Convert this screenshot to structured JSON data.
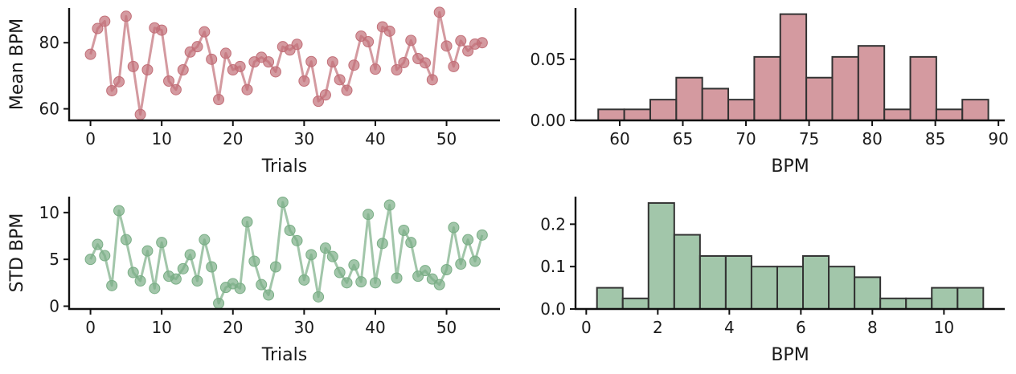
{
  "colors": {
    "red": "#c26f78",
    "green": "#7aae86",
    "edge": "#333333"
  },
  "chart_data": [
    {
      "type": "line",
      "id": "mean-line",
      "xlabel": "Trials",
      "ylabel": "Mean BPM",
      "xlim": [
        -3,
        57.5
      ],
      "ylim": [
        56.5,
        90.5
      ],
      "xticks": [
        0,
        10,
        20,
        30,
        40,
        50
      ],
      "xtick_labels": [
        "0",
        "10",
        "20",
        "30",
        "40",
        "50"
      ],
      "yticks": [
        60,
        80
      ],
      "ytick_labels": [
        "60",
        "80"
      ],
      "series": [
        {
          "name": "Mean BPM",
          "x": [
            0,
            1,
            2,
            3,
            4,
            5,
            6,
            7,
            8,
            9,
            10,
            11,
            12,
            13,
            14,
            15,
            16,
            17,
            18,
            19,
            20,
            21,
            22,
            23,
            24,
            25,
            26,
            27,
            28,
            29,
            30,
            31,
            32,
            33,
            34,
            35,
            36,
            37,
            38,
            39,
            40,
            41,
            42,
            43,
            44,
            45,
            46,
            47,
            48,
            49,
            50,
            51,
            52,
            53,
            54,
            55
          ],
          "values": [
            76.5,
            84.3,
            86.5,
            65.5,
            68.2,
            88,
            72.8,
            58.3,
            71.8,
            84.5,
            83.8,
            68.4,
            65.8,
            71.8,
            77.2,
            78.8,
            83.3,
            75,
            62.8,
            76.8,
            71.8,
            72.8,
            65.8,
            74.2,
            75.6,
            74.2,
            71.2,
            78.8,
            77.8,
            79.5,
            68.4,
            74.3,
            62.3,
            64.2,
            74.2,
            68.8,
            65.6,
            73.2,
            82,
            80.3,
            72,
            84.8,
            83.5,
            71.8,
            74,
            80.7,
            75.2,
            73.9,
            68.8,
            89.2,
            79,
            72.8,
            80.6,
            77.5,
            79.6,
            80
          ]
        }
      ]
    },
    {
      "type": "histogram",
      "id": "mean-hist",
      "xlabel": "BPM",
      "ylabel": "",
      "xlim": [
        56.5,
        90.5
      ],
      "ylim": [
        0,
        0.092
      ],
      "xticks": [
        60,
        65,
        70,
        75,
        80,
        85,
        90
      ],
      "xtick_labels": [
        "60",
        "65",
        "70",
        "75",
        "80",
        "85",
        "90"
      ],
      "yticks": [
        0,
        0.05
      ],
      "ytick_labels": [
        "0.00",
        "0.05"
      ],
      "bin_edges": [
        58.3,
        60.36,
        62.42,
        64.48,
        66.54,
        68.6,
        70.66,
        72.72,
        74.78,
        76.84,
        78.9,
        80.96,
        83.02,
        85.08,
        87.14,
        89.2
      ],
      "values": [
        0.009,
        0.009,
        0.017,
        0.035,
        0.026,
        0.017,
        0.052,
        0.087,
        0.035,
        0.052,
        0.061,
        0.009,
        0.052,
        0.009,
        0.017
      ]
    },
    {
      "type": "line",
      "id": "std-line",
      "xlabel": "Trials",
      "ylabel": "STD BPM",
      "xlim": [
        -3,
        57.5
      ],
      "ylim": [
        -0.3,
        11.7
      ],
      "xticks": [
        0,
        10,
        20,
        30,
        40,
        50
      ],
      "xtick_labels": [
        "0",
        "10",
        "20",
        "30",
        "40",
        "50"
      ],
      "yticks": [
        0,
        5,
        10
      ],
      "ytick_labels": [
        "0",
        "5",
        "10"
      ],
      "series": [
        {
          "name": "STD BPM",
          "x": [
            0,
            1,
            2,
            3,
            4,
            5,
            6,
            7,
            8,
            9,
            10,
            11,
            12,
            13,
            14,
            15,
            16,
            17,
            18,
            19,
            20,
            21,
            22,
            23,
            24,
            25,
            26,
            27,
            28,
            29,
            30,
            31,
            32,
            33,
            34,
            35,
            36,
            37,
            38,
            39,
            40,
            41,
            42,
            43,
            44,
            45,
            46,
            47,
            48,
            49,
            50,
            51,
            52,
            53,
            54,
            55
          ],
          "values": [
            5,
            6.6,
            5.4,
            2.2,
            10.2,
            7.1,
            3.6,
            2.7,
            5.9,
            1.9,
            6.8,
            3.2,
            2.9,
            4,
            5.5,
            2.7,
            7.1,
            4.2,
            0.3,
            2,
            2.4,
            1.9,
            9,
            4.8,
            2.3,
            1.2,
            4.2,
            11.1,
            8.1,
            7,
            2.8,
            5.5,
            1,
            6.2,
            5.3,
            3.6,
            2.5,
            4.4,
            2.6,
            9.8,
            2.5,
            6.7,
            10.8,
            3,
            8.1,
            6.8,
            3.2,
            3.8,
            2.9,
            2.3,
            3.9,
            8.4,
            4.5,
            7.1,
            4.8,
            7.6
          ]
        }
      ]
    },
    {
      "type": "histogram",
      "id": "std-hist",
      "xlabel": "BPM",
      "ylabel": "",
      "xlim": [
        -0.3,
        11.7
      ],
      "ylim": [
        0,
        0.265
      ],
      "xticks": [
        0,
        2,
        4,
        6,
        8,
        10
      ],
      "xtick_labels": [
        "0",
        "2",
        "4",
        "6",
        "8",
        "10"
      ],
      "yticks": [
        0,
        0.1,
        0.2
      ],
      "ytick_labels": [
        "0.0",
        "0.1",
        "0.2"
      ],
      "bin_edges": [
        0.3,
        1.02,
        1.74,
        2.46,
        3.18,
        3.9,
        4.62,
        5.34,
        6.06,
        6.78,
        7.5,
        8.22,
        8.94,
        9.66,
        10.38,
        11.1
      ],
      "values": [
        0.05,
        0.025,
        0.25,
        0.175,
        0.125,
        0.125,
        0.1,
        0.1,
        0.125,
        0.1,
        0.075,
        0.025,
        0.025,
        0.05,
        0.05
      ]
    }
  ]
}
